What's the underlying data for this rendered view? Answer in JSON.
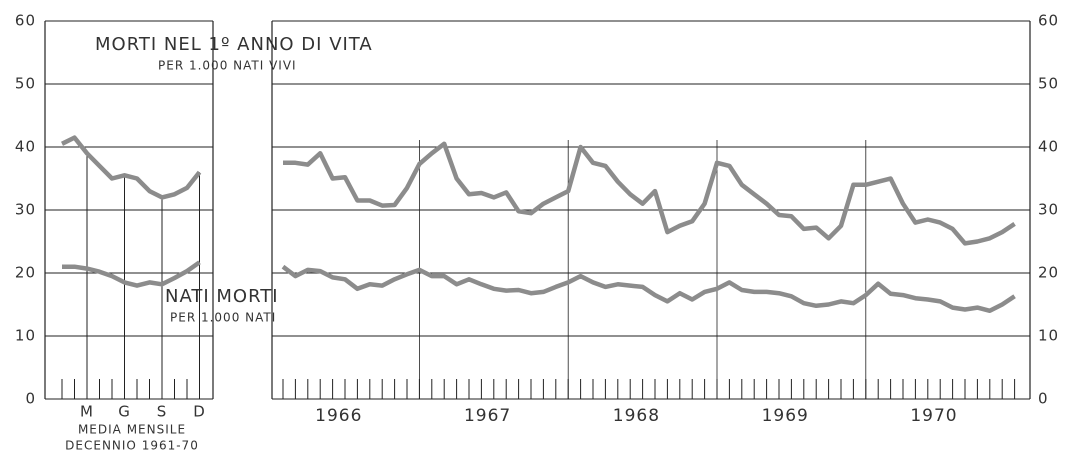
{
  "chart_data": [
    {
      "type": "line",
      "categories": [
        null,
        null,
        "M",
        null,
        null,
        "G",
        null,
        null,
        "S",
        null,
        null,
        "D"
      ],
      "xlabel": [
        "MEDIA MENSILE",
        "DECENNIO 1961-70"
      ],
      "ylim": [
        0,
        60
      ],
      "yticks": [
        0,
        10,
        20,
        30,
        40,
        50,
        60
      ],
      "series": [
        {
          "label": [
            "MORTI NEL 1º ANNO DI VITA",
            "PER 1.000 NATI VIVI"
          ],
          "color": "#8c8c8c",
          "values": [
            40.5,
            41.5,
            39,
            37,
            35,
            35.5,
            35,
            33,
            32,
            32.5,
            33.5,
            36
          ]
        },
        {
          "label": [
            "NATI MORTI",
            "PER 1.000 NATI"
          ],
          "color": "#8c8c8c",
          "values": [
            21,
            21,
            20.7,
            20.2,
            19.5,
            18.5,
            18,
            18.5,
            18.2,
            19.2,
            20.3,
            21.7
          ]
        }
      ]
    },
    {
      "type": "line",
      "categories": [
        null,
        null,
        null,
        null,
        null,
        null,
        "1966",
        null,
        null,
        null,
        null,
        null,
        null,
        null,
        null,
        null,
        null,
        null,
        "1967",
        null,
        null,
        null,
        null,
        null,
        null,
        null,
        null,
        null,
        null,
        null,
        "1968",
        null,
        null,
        null,
        null,
        null,
        null,
        null,
        null,
        null,
        null,
        null,
        "1969",
        null,
        null,
        null,
        null,
        null,
        null,
        null,
        null,
        null,
        null,
        null,
        "1970",
        null,
        null,
        null,
        null,
        null
      ],
      "ylim": [
        0,
        60
      ],
      "yticks": [
        0,
        10,
        20,
        30,
        40,
        50,
        60
      ],
      "series": [
        {
          "color": "#8c8c8c",
          "values": [
            37.5,
            37.5,
            37.2,
            39,
            35,
            35.2,
            31.5,
            31.5,
            30.7,
            30.8,
            33.5,
            37.3,
            39,
            40.5,
            35,
            32.5,
            32.7,
            32,
            32.8,
            29.8,
            29.5,
            31,
            32,
            33,
            40,
            37.5,
            37,
            34.5,
            32.5,
            31,
            33,
            26.5,
            27.5,
            28.2,
            31,
            37.5,
            37,
            34,
            32.5,
            31,
            29.2,
            29,
            27,
            27.2,
            25.5,
            27.5,
            34,
            34,
            34.5,
            35,
            31,
            28,
            28.5,
            28,
            27,
            24.7,
            25,
            25.5,
            26.5,
            27.8
          ]
        },
        {
          "color": "#8c8c8c",
          "values": [
            21,
            19.5,
            20.5,
            20.3,
            19.3,
            19,
            17.5,
            18.2,
            18,
            19,
            19.8,
            20.5,
            19.5,
            19.5,
            18.2,
            19,
            18.2,
            17.5,
            17.2,
            17.3,
            16.8,
            17,
            17.8,
            18.5,
            19.5,
            18.5,
            17.8,
            18.2,
            18,
            17.8,
            16.5,
            15.5,
            16.8,
            15.8,
            17,
            17.5,
            18.5,
            17.3,
            17,
            17,
            16.8,
            16.3,
            15.2,
            14.8,
            15,
            15.5,
            15.2,
            16.5,
            18.3,
            16.7,
            16.5,
            16,
            15.8,
            15.5,
            14.5,
            14.2,
            14.5,
            14,
            15,
            16.3
          ]
        }
      ]
    }
  ]
}
